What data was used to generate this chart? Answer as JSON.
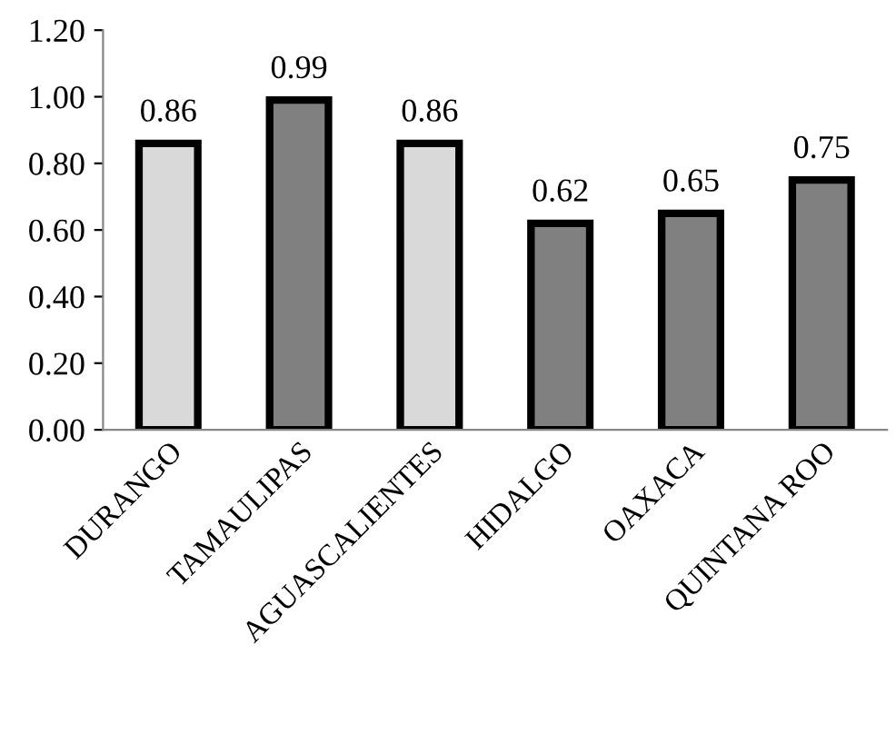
{
  "chart_data": {
    "type": "bar",
    "categories": [
      "DURANGO",
      "TAMAULIPAS",
      "AGUASCALIENTES",
      "HIDALGO",
      "OAXACA",
      "QUINTANA ROO"
    ],
    "values": [
      0.86,
      0.99,
      0.86,
      0.62,
      0.65,
      0.75
    ],
    "value_labels": [
      "0.86",
      "0.99",
      "0.86",
      "0.62",
      "0.65",
      "0.75"
    ],
    "colors": [
      "#d9d9d9",
      "#808080",
      "#d9d9d9",
      "#808080",
      "#808080",
      "#808080"
    ],
    "ylim": [
      0,
      1.2
    ],
    "yticks": [
      {
        "value": 0,
        "label": "0.00"
      },
      {
        "value": 0.2,
        "label": "0.20"
      },
      {
        "value": 0.4,
        "label": "0.40"
      },
      {
        "value": 0.6,
        "label": "0.60"
      },
      {
        "value": 0.8,
        "label": "0.80"
      },
      {
        "value": 1.0,
        "label": "1.00"
      },
      {
        "value": 1.2,
        "label": "1.20"
      }
    ],
    "grid": false,
    "legend": false
  }
}
